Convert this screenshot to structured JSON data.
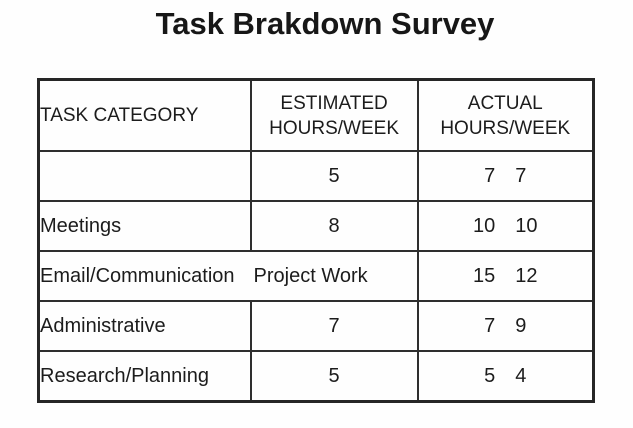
{
  "title": "Task Brakdown Survey",
  "colors": {
    "text": "#1c1c1c",
    "border": "#2e2e2e",
    "background": "#fefefe"
  },
  "table": {
    "headers": {
      "category": "TASK CATEGORY",
      "estimated_line1": "ESTIMATED",
      "estimated_line2": "HOURS/WEEK",
      "actual_line1": "ACTUAL",
      "actual_line2": "HOURS/WEEK"
    },
    "rows": [
      {
        "category": "",
        "estimated": "5",
        "actual_1": "7",
        "actual_2": "7"
      },
      {
        "category": "Meetings",
        "estimated": "8",
        "actual_1": "10",
        "actual_2": "10"
      },
      {
        "category": "Email/Communication",
        "estimated": "Project Work",
        "actual_1": "15",
        "actual_2": "12",
        "merged": true
      },
      {
        "category": "Administrative",
        "estimated": "7",
        "actual_1": "7",
        "actual_2": "9"
      },
      {
        "category": "Research/Planning",
        "estimated": "5",
        "actual_1": "5",
        "actual_2": "4"
      }
    ]
  },
  "chart_data": {
    "type": "table",
    "title": "Task Brakdown Survey",
    "columns": [
      "TASK CATEGORY",
      "ESTIMATED HOURS/WEEK",
      "ACTUAL HOURS/WEEK"
    ],
    "rows": [
      [
        "",
        "5",
        "7 7"
      ],
      [
        "Meetings",
        "8",
        "10 10"
      ],
      [
        "Email/Communication Project Work",
        "",
        "15 12"
      ],
      [
        "Administrative",
        "7",
        "7 9"
      ],
      [
        "Research/Planning",
        "5",
        "5 4"
      ]
    ]
  }
}
